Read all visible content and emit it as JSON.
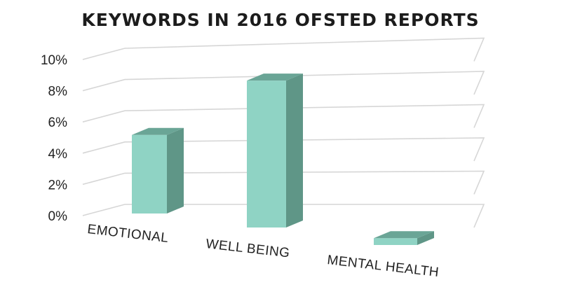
{
  "chart_data": {
    "type": "bar",
    "title": "KEYWORDS IN 2016 OFSTED REPORTS",
    "categories": [
      "EMOTIONAL",
      "WELL BEING",
      "MENTAL HEALTH"
    ],
    "values": [
      4.6,
      8.6,
      0.4
    ],
    "yticks": [
      "0%",
      "2%",
      "4%",
      "6%",
      "8%",
      "10%"
    ],
    "ylim": [
      0,
      10
    ],
    "grid": true,
    "colors": {
      "front": "#8fd3c4",
      "side": "#5f9687",
      "top": "#6aa596",
      "grid": "#d6d6d6"
    }
  }
}
